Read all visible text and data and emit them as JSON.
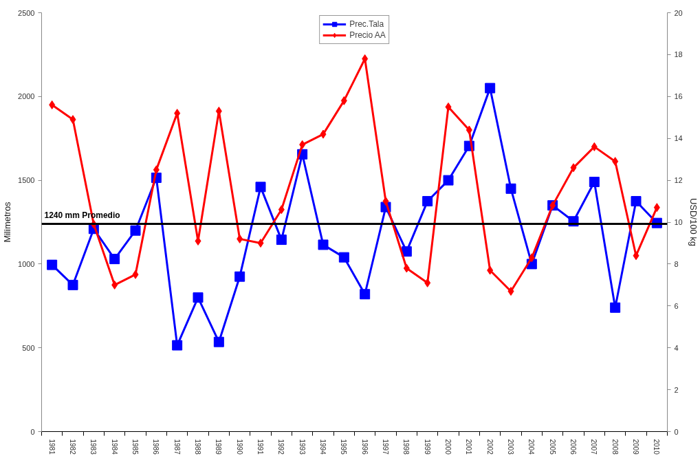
{
  "chart_data": {
    "type": "line",
    "ylabel": "Milimetros",
    "y2label": "USD/100 kg",
    "categories": [
      "1981",
      "1982",
      "1983",
      "1984",
      "1985",
      "1986",
      "1987",
      "1988",
      "1989",
      "1990",
      "1991",
      "1992",
      "1993",
      "1994",
      "1995",
      "1996",
      "1997",
      "1998",
      "1999",
      "2000",
      "2001",
      "2002",
      "2003",
      "2004",
      "2005",
      "2006",
      "2007",
      "2008",
      "2009",
      "2010"
    ],
    "series": [
      {
        "name": "Prec.Tala",
        "color": "#0000ff",
        "marker": "square",
        "values": [
          995,
          875,
          1210,
          1030,
          1200,
          1515,
          515,
          800,
          535,
          925,
          1460,
          1145,
          1655,
          1115,
          1040,
          820,
          1340,
          1075,
          1375,
          1500,
          1705,
          2050,
          1450,
          1000,
          1350,
          1255,
          1490,
          740,
          1375,
          1245
        ]
      },
      {
        "name": "Precio AA",
        "color": "#ff0000",
        "marker": "diamond",
        "axis": "y2",
        "values": [
          15.6,
          14.9,
          9.9,
          7.0,
          7.5,
          12.5,
          15.2,
          9.1,
          15.3,
          9.2,
          9.0,
          10.6,
          13.7,
          14.2,
          15.8,
          17.8,
          11.0,
          7.8,
          7.1,
          15.5,
          14.4,
          7.7,
          6.7,
          8.3,
          10.8,
          12.6,
          13.6,
          12.9,
          8.4,
          10.7
        ]
      }
    ],
    "ylim": [
      0,
      2500
    ],
    "yticks": [
      0,
      500,
      1000,
      1500,
      2000,
      2500
    ],
    "y2lim": [
      0,
      20
    ],
    "y2ticks": [
      0,
      2,
      4,
      6,
      8,
      10,
      12,
      14,
      16,
      18,
      20
    ],
    "ref_lines": [
      {
        "axis": "y",
        "value": 1240,
        "label": "1240 mm Promedio",
        "color": "#000000"
      }
    ],
    "line_style": "solid",
    "legend": "top"
  }
}
